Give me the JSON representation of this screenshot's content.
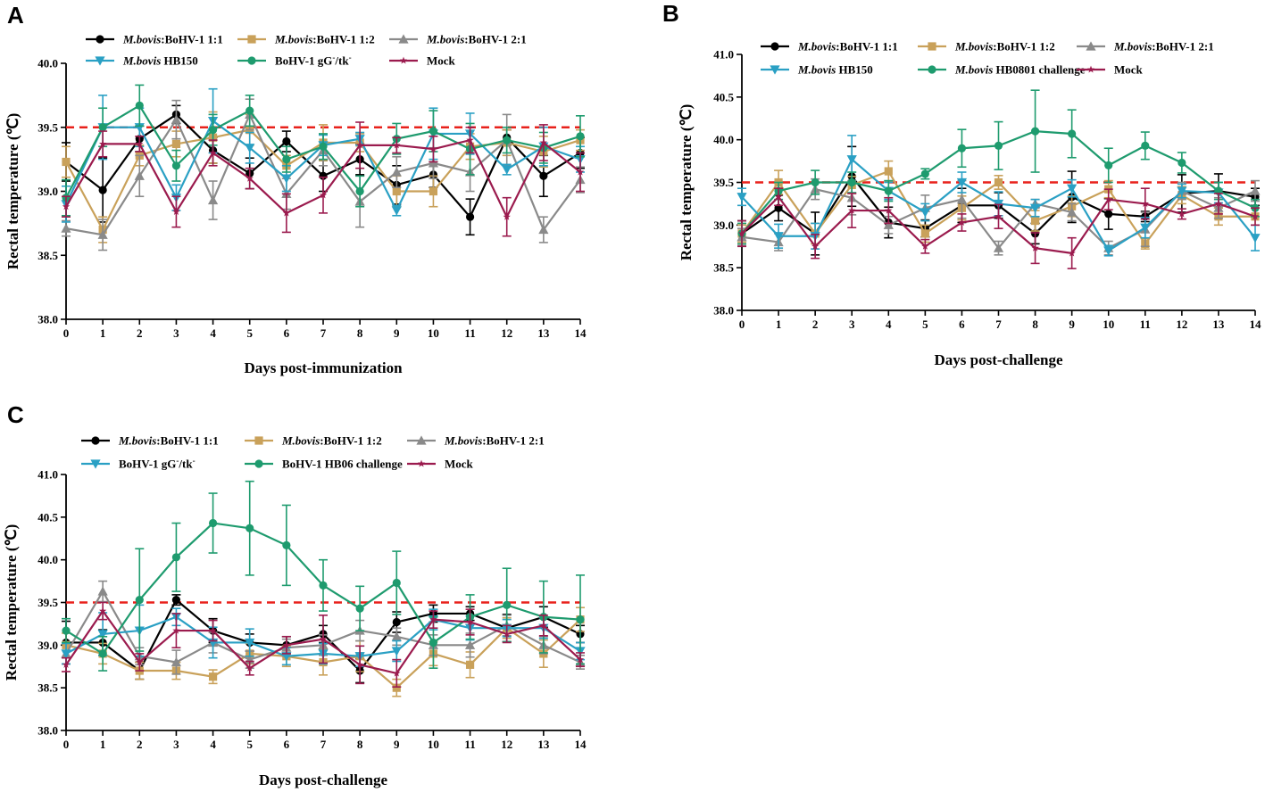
{
  "chart_data": [
    {
      "type": "line",
      "panel": "A",
      "title": "",
      "xlabel": "Days post-immunization",
      "ylabel": "Rectal temperature (℃)",
      "ylim": [
        38.0,
        40.0
      ],
      "xlim": [
        0,
        14
      ],
      "yticks": [
        "38.0",
        "38.5",
        "39.0",
        "39.5",
        "40.0"
      ],
      "x": [
        0,
        1,
        2,
        3,
        4,
        5,
        6,
        7,
        8,
        9,
        10,
        11,
        12,
        13,
        14
      ],
      "threshold": 39.5,
      "series": [
        {
          "name": "M.bovis:BoHV-1 1:1",
          "italic_prefix": "M.bovis",
          "rest": ":BoHV-1 1:1",
          "color": "#000000",
          "marker": "circle",
          "values": [
            39.23,
            39.01,
            39.41,
            39.6,
            39.32,
            39.14,
            39.39,
            39.12,
            39.25,
            39.05,
            39.13,
            38.8,
            39.42,
            39.12,
            39.3
          ],
          "errors": [
            0.15,
            0.25,
            0.1,
            0.07,
            0.1,
            0.12,
            0.08,
            0.12,
            0.12,
            0.15,
            0.1,
            0.14,
            0.06,
            0.16,
            0.12
          ]
        },
        {
          "name": "M.bovis:BoHV-1 1:2",
          "italic_prefix": "M.bovis",
          "rest": ":BoHV-1 1:2",
          "color": "#c9a15a",
          "marker": "square",
          "values": [
            39.23,
            38.7,
            39.28,
            39.37,
            39.42,
            39.48,
            39.2,
            39.38,
            39.38,
            39.0,
            39.0,
            39.35,
            39.38,
            39.31,
            39.4
          ],
          "errors": [
            0.12,
            0.1,
            0.08,
            0.1,
            0.2,
            0.12,
            0.08,
            0.14,
            0.07,
            0.12,
            0.12,
            0.1,
            0.1,
            0.12,
            0.08
          ]
        },
        {
          "name": "M.bovis:BoHV-1 2:1",
          "italic_prefix": "M.bovis",
          "rest": ":BoHV-1 2:1",
          "color": "#8a8a8a",
          "marker": "triangle-up",
          "values": [
            38.71,
            38.66,
            39.12,
            39.56,
            38.93,
            39.6,
            38.98,
            39.32,
            38.92,
            39.15,
            39.22,
            39.15,
            39.4,
            38.7,
            39.09
          ],
          "errors": [
            0.06,
            0.12,
            0.16,
            0.15,
            0.15,
            0.12,
            0.12,
            0.12,
            0.2,
            0.12,
            0.12,
            0.15,
            0.2,
            0.1,
            0.1
          ]
        },
        {
          "name": "M.bovis HB150",
          "italic_prefix": "M.bovis",
          "rest": " HB150",
          "color": "#2aa0c4",
          "marker": "triangle-down",
          "values": [
            38.9,
            39.5,
            39.5,
            38.95,
            39.55,
            39.34,
            39.1,
            39.36,
            39.41,
            38.85,
            39.45,
            39.45,
            39.17,
            39.35,
            39.25
          ],
          "errors": [
            0.14,
            0.25,
            0.15,
            0.1,
            0.25,
            0.12,
            0.1,
            0.08,
            0.05,
            0.04,
            0.2,
            0.16,
            0.04,
            0.15,
            0.1
          ]
        },
        {
          "name": "BoHV-1 gG-/tk-",
          "color": "#1e9b6e",
          "marker": "circle",
          "values": [
            38.95,
            39.5,
            39.67,
            39.2,
            39.48,
            39.63,
            39.25,
            39.35,
            39.0,
            39.41,
            39.47,
            39.33,
            39.4,
            39.34,
            39.43
          ],
          "errors": [
            0.14,
            0.15,
            0.16,
            0.12,
            0.12,
            0.12,
            0.1,
            0.1,
            0.12,
            0.12,
            0.16,
            0.2,
            0.1,
            0.12,
            0.16
          ]
        },
        {
          "name": "Mock",
          "color": "#9b1b4e",
          "marker": "star",
          "values": [
            38.88,
            39.37,
            39.37,
            38.84,
            39.3,
            39.1,
            38.83,
            38.97,
            39.36,
            39.36,
            39.33,
            39.4,
            38.8,
            39.38,
            39.15
          ],
          "errors": [
            0.08,
            0.1,
            0.06,
            0.12,
            0.1,
            0.08,
            0.15,
            0.14,
            0.18,
            0.06,
            0.1,
            0.1,
            0.15,
            0.14,
            0.15
          ]
        }
      ],
      "legend_rows": [
        [
          "M.bovis:BoHV-1 1:1",
          "M.bovis:BoHV-1 1:2",
          "M.bovis:BoHV-1 2:1"
        ],
        [
          "M.bovis HB150",
          "BoHV-1 gG-/tk-",
          "Mock"
        ]
      ]
    },
    {
      "type": "line",
      "panel": "B",
      "title": "",
      "xlabel": "Days post-challenge",
      "ylabel": "Rectal temperature (℃)",
      "ylim": [
        38.0,
        41.0
      ],
      "xlim": [
        0,
        14
      ],
      "yticks": [
        "38.0",
        "38.5",
        "39.0",
        "39.5",
        "40.0",
        "40.5",
        "41.0"
      ],
      "x": [
        0,
        1,
        2,
        3,
        4,
        5,
        6,
        7,
        8,
        9,
        10,
        11,
        12,
        13,
        14
      ],
      "threshold": 39.5,
      "series": [
        {
          "name": "M.bovis:BoHV-1 1:1",
          "italic_prefix": "M.bovis",
          "rest": ":BoHV-1 1:1",
          "color": "#000000",
          "marker": "circle",
          "values": [
            38.9,
            39.2,
            38.9,
            39.57,
            39.03,
            38.96,
            39.23,
            39.23,
            38.9,
            39.33,
            39.13,
            39.1,
            39.37,
            39.4,
            39.33
          ],
          "errors": [
            0.15,
            0.15,
            0.25,
            0.35,
            0.18,
            0.1,
            0.2,
            0.15,
            0.12,
            0.3,
            0.18,
            0.06,
            0.22,
            0.2,
            0.1
          ]
        },
        {
          "name": "M.bovis:BoHV-1 1:2",
          "italic_prefix": "M.bovis",
          "rest": ":BoHV-1 1:2",
          "color": "#c9a15a",
          "marker": "square",
          "values": [
            38.9,
            39.5,
            38.9,
            39.47,
            39.63,
            38.9,
            39.2,
            39.5,
            39.05,
            39.22,
            39.42,
            38.78,
            39.35,
            39.1,
            39.1
          ],
          "errors": [
            0.1,
            0.14,
            0.12,
            0.1,
            0.12,
            0.1,
            0.14,
            0.08,
            0.12,
            0.12,
            0.1,
            0.06,
            0.1,
            0.1,
            0.1
          ]
        },
        {
          "name": "M.bovis:BoHV-1 2:1",
          "italic_prefix": "M.bovis",
          "rest": ":BoHV-1 2:1",
          "color": "#8a8a8a",
          "marker": "triangle-up",
          "values": [
            38.86,
            38.8,
            39.42,
            39.32,
            39.0,
            39.2,
            39.3,
            38.73,
            39.25,
            39.15,
            38.73,
            38.95,
            39.4,
            39.2,
            39.4
          ],
          "errors": [
            0.1,
            0.1,
            0.12,
            0.2,
            0.1,
            0.15,
            0.22,
            0.08,
            0.05,
            0.1,
            0.08,
            0.2,
            0.1,
            0.12,
            0.12
          ]
        },
        {
          "name": "M.bovis HB150",
          "italic_prefix": "M.bovis",
          "rest": " HB150",
          "color": "#2aa0c4",
          "marker": "triangle-down",
          "values": [
            39.33,
            38.87,
            38.87,
            39.77,
            39.4,
            39.15,
            39.5,
            39.25,
            39.2,
            39.43,
            38.7,
            38.97,
            39.4,
            39.38,
            38.85
          ],
          "errors": [
            0.1,
            0.14,
            0.15,
            0.28,
            0.1,
            0.1,
            0.12,
            0.14,
            0.1,
            0.1,
            0.06,
            0.12,
            0.08,
            0.12,
            0.15
          ]
        },
        {
          "name": "M.bovis HB0801 challenge",
          "italic_prefix": "M.bovis",
          "rest": " HB0801 challenge",
          "color": "#1e9b6e",
          "marker": "circle",
          "values": [
            38.9,
            39.4,
            39.5,
            39.5,
            39.4,
            39.6,
            39.9,
            39.93,
            40.1,
            40.07,
            39.7,
            39.93,
            39.73,
            39.4,
            39.2
          ],
          "errors": [
            0.12,
            0.1,
            0.14,
            0.12,
            0.12,
            0.06,
            0.22,
            0.28,
            0.48,
            0.28,
            0.2,
            0.16,
            0.12,
            0.1,
            0.1
          ]
        },
        {
          "name": "Mock",
          "color": "#9b1b4e",
          "marker": "star",
          "values": [
            38.9,
            39.33,
            38.75,
            39.17,
            39.17,
            38.75,
            39.03,
            39.1,
            38.73,
            38.67,
            39.3,
            39.25,
            39.13,
            39.25,
            39.1
          ],
          "errors": [
            0.15,
            0.1,
            0.14,
            0.2,
            0.15,
            0.08,
            0.1,
            0.14,
            0.18,
            0.18,
            0.12,
            0.18,
            0.06,
            0.12,
            0.1
          ]
        }
      ],
      "legend_rows": [
        [
          "M.bovis:BoHV-1 1:1",
          "M.bovis:BoHV-1 1:2",
          "M.bovis:BoHV-1 2:1"
        ],
        [
          "M.bovis HB150",
          "M.bovis HB0801 challenge",
          "Mock"
        ]
      ]
    },
    {
      "type": "line",
      "panel": "C",
      "title": "",
      "xlabel": "Days post-challenge",
      "ylabel": "Rectal temperature (℃)",
      "ylim": [
        38.0,
        41.0
      ],
      "xlim": [
        0,
        14
      ],
      "yticks": [
        "38.0",
        "38.5",
        "39.0",
        "39.5",
        "40.0",
        "40.5",
        "41.0"
      ],
      "x": [
        0,
        1,
        2,
        3,
        4,
        5,
        6,
        7,
        8,
        9,
        10,
        11,
        12,
        13,
        14
      ],
      "threshold": 39.5,
      "series": [
        {
          "name": "M.bovis:BoHV-1 1:1",
          "italic_prefix": "M.bovis",
          "rest": ":BoHV-1 1:1",
          "color": "#000000",
          "marker": "circle",
          "values": [
            39.03,
            39.03,
            38.7,
            39.53,
            39.17,
            39.03,
            39.0,
            39.13,
            38.7,
            39.27,
            39.37,
            39.37,
            39.2,
            39.33,
            39.13
          ],
          "errors": [
            0.25,
            0.15,
            0.1,
            0.06,
            0.14,
            0.1,
            0.1,
            0.1,
            0.14,
            0.12,
            0.1,
            0.08,
            0.16,
            0.12,
            0.1
          ]
        },
        {
          "name": "M.bovis:BoHV-1 1:2",
          "italic_prefix": "M.bovis",
          "rest": ":BoHV-1 1:2",
          "color": "#c9a15a",
          "marker": "square",
          "values": [
            39.0,
            38.9,
            38.7,
            38.7,
            38.63,
            38.9,
            38.87,
            38.8,
            38.87,
            38.5,
            38.9,
            38.77,
            39.2,
            38.9,
            39.3
          ],
          "errors": [
            0.14,
            0.12,
            0.1,
            0.1,
            0.08,
            0.12,
            0.12,
            0.15,
            0.18,
            0.1,
            0.14,
            0.15,
            0.12,
            0.16,
            0.14
          ]
        },
        {
          "name": "M.bovis:BoHV-1 2:1",
          "italic_prefix": "M.bovis",
          "rest": ":BoHV-1 2:1",
          "color": "#8a8a8a",
          "marker": "triangle-up",
          "values": [
            38.9,
            39.63,
            38.87,
            38.8,
            39.03,
            38.83,
            38.97,
            39.0,
            39.17,
            39.1,
            39.0,
            39.0,
            39.23,
            39.0,
            38.8
          ],
          "errors": [
            0.12,
            0.12,
            0.1,
            0.14,
            0.12,
            0.1,
            0.1,
            0.12,
            0.12,
            0.1,
            0.12,
            0.14,
            0.12,
            0.1,
            0.08
          ]
        },
        {
          "name": "BoHV-1 gG-/tk-",
          "color": "#2aa0c4",
          "marker": "triangle-down",
          "values": [
            38.9,
            39.13,
            39.17,
            39.33,
            39.03,
            39.03,
            38.87,
            38.9,
            38.87,
            38.93,
            39.3,
            39.2,
            39.2,
            39.2,
            38.93
          ],
          "errors": [
            0.12,
            0.25,
            0.3,
            0.1,
            0.18,
            0.16,
            0.1,
            0.12,
            0.12,
            0.12,
            0.12,
            0.14,
            0.1,
            0.12,
            0.1
          ]
        },
        {
          "name": "BoHV-1 HB06 challenge",
          "color": "#1e9b6e",
          "marker": "circle",
          "values": [
            39.17,
            38.9,
            39.53,
            40.03,
            40.43,
            40.37,
            40.17,
            39.7,
            39.43,
            39.73,
            39.03,
            39.33,
            39.47,
            39.33,
            39.3
          ],
          "errors": [
            0.14,
            0.2,
            0.6,
            0.4,
            0.35,
            0.55,
            0.47,
            0.3,
            0.26,
            0.37,
            0.3,
            0.26,
            0.43,
            0.42,
            0.52
          ]
        },
        {
          "name": "Mock",
          "color": "#9b1b4e",
          "marker": "star",
          "values": [
            38.77,
            39.4,
            38.8,
            39.17,
            39.17,
            38.73,
            39.0,
            39.07,
            38.77,
            38.67,
            39.3,
            39.27,
            39.13,
            39.23,
            38.83
          ],
          "errors": [
            0.08,
            0.1,
            0.1,
            0.2,
            0.12,
            0.08,
            0.1,
            0.28,
            0.22,
            0.16,
            0.1,
            0.15,
            0.1,
            0.12,
            0.08
          ]
        }
      ],
      "legend_rows": [
        [
          "M.bovis:BoHV-1 1:1",
          "M.bovis:BoHV-1 1:2",
          "M.bovis:BoHV-1 2:1"
        ],
        [
          "BoHV-1 gG-/tk-",
          "BoHV-1 HB06 challenge",
          "Mock"
        ]
      ]
    }
  ]
}
